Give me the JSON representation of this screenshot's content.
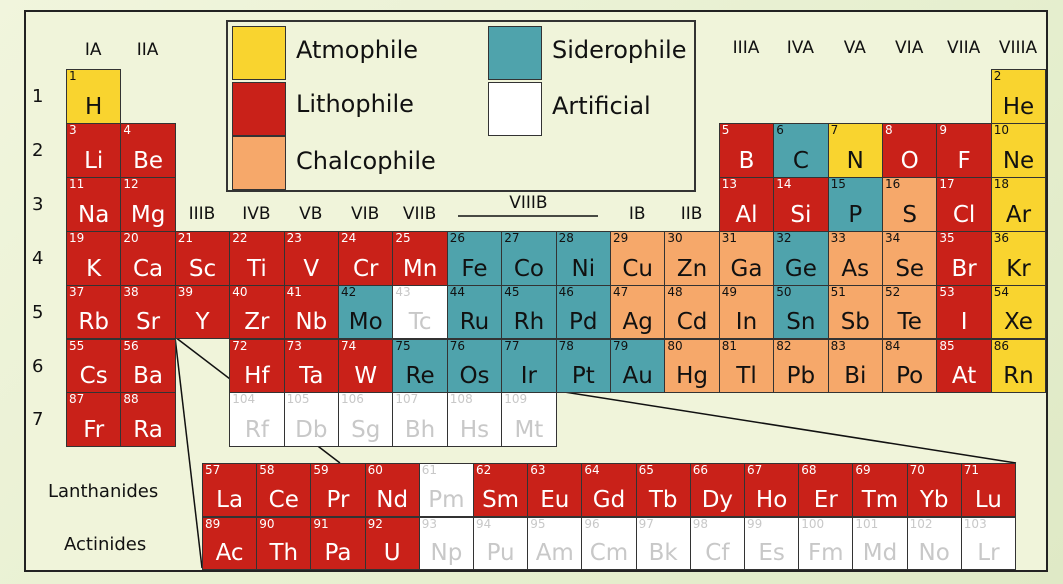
{
  "group_labels": [
    "IA",
    "IIA",
    "IIIB",
    "IVB",
    "VB",
    "VIB",
    "VIIB",
    "VIIIB",
    "IB",
    "IIB",
    "IIIA",
    "IVA",
    "VA",
    "VIA",
    "VIIA",
    "VIIIA"
  ],
  "period_labels": [
    "1",
    "2",
    "3",
    "4",
    "5",
    "6",
    "7"
  ],
  "series_labels": {
    "lanthanides": "Lanthanides",
    "actinides": "Actinides"
  },
  "legend": [
    {
      "label": "Atmophile",
      "class": "atmophile",
      "color": "#f9d42f"
    },
    {
      "label": "Lithophile",
      "class": "lithophile",
      "color": "#c92119"
    },
    {
      "label": "Chalcophile",
      "class": "chalcophile",
      "color": "#f6a86a"
    },
    {
      "label": "Siderophile",
      "class": "siderophile",
      "color": "#4fa3ac"
    },
    {
      "label": "Artificial",
      "class": "artificial",
      "color": "#ffffff"
    }
  ],
  "elements": [
    {
      "n": "1",
      "s": "H",
      "c": "atmophile",
      "p": 1,
      "g": 1
    },
    {
      "n": "2",
      "s": "He",
      "c": "atmophile",
      "p": 1,
      "g": 18
    },
    {
      "n": "3",
      "s": "Li",
      "c": "lithophile",
      "p": 2,
      "g": 1
    },
    {
      "n": "4",
      "s": "Be",
      "c": "lithophile",
      "p": 2,
      "g": 2
    },
    {
      "n": "5",
      "s": "B",
      "c": "lithophile",
      "p": 2,
      "g": 13
    },
    {
      "n": "6",
      "s": "C",
      "c": "siderophile",
      "p": 2,
      "g": 14
    },
    {
      "n": "7",
      "s": "N",
      "c": "atmophile",
      "p": 2,
      "g": 15
    },
    {
      "n": "8",
      "s": "O",
      "c": "lithophile",
      "p": 2,
      "g": 16
    },
    {
      "n": "9",
      "s": "F",
      "c": "lithophile",
      "p": 2,
      "g": 17
    },
    {
      "n": "10",
      "s": "Ne",
      "c": "atmophile",
      "p": 2,
      "g": 18
    },
    {
      "n": "11",
      "s": "Na",
      "c": "lithophile",
      "p": 3,
      "g": 1
    },
    {
      "n": "12",
      "s": "Mg",
      "c": "lithophile",
      "p": 3,
      "g": 2
    },
    {
      "n": "13",
      "s": "Al",
      "c": "lithophile",
      "p": 3,
      "g": 13
    },
    {
      "n": "14",
      "s": "Si",
      "c": "lithophile",
      "p": 3,
      "g": 14
    },
    {
      "n": "15",
      "s": "P",
      "c": "siderophile",
      "p": 3,
      "g": 15
    },
    {
      "n": "16",
      "s": "S",
      "c": "chalcophile",
      "p": 3,
      "g": 16
    },
    {
      "n": "17",
      "s": "Cl",
      "c": "lithophile",
      "p": 3,
      "g": 17
    },
    {
      "n": "18",
      "s": "Ar",
      "c": "atmophile",
      "p": 3,
      "g": 18
    },
    {
      "n": "19",
      "s": "K",
      "c": "lithophile",
      "p": 4,
      "g": 1
    },
    {
      "n": "20",
      "s": "Ca",
      "c": "lithophile",
      "p": 4,
      "g": 2
    },
    {
      "n": "21",
      "s": "Sc",
      "c": "lithophile",
      "p": 4,
      "g": 3
    },
    {
      "n": "22",
      "s": "Ti",
      "c": "lithophile",
      "p": 4,
      "g": 4
    },
    {
      "n": "23",
      "s": "V",
      "c": "lithophile",
      "p": 4,
      "g": 5
    },
    {
      "n": "24",
      "s": "Cr",
      "c": "lithophile",
      "p": 4,
      "g": 6
    },
    {
      "n": "25",
      "s": "Mn",
      "c": "lithophile",
      "p": 4,
      "g": 7
    },
    {
      "n": "26",
      "s": "Fe",
      "c": "siderophile",
      "p": 4,
      "g": 8
    },
    {
      "n": "27",
      "s": "Co",
      "c": "siderophile",
      "p": 4,
      "g": 9
    },
    {
      "n": "28",
      "s": "Ni",
      "c": "siderophile",
      "p": 4,
      "g": 10
    },
    {
      "n": "29",
      "s": "Cu",
      "c": "chalcophile",
      "p": 4,
      "g": 11
    },
    {
      "n": "30",
      "s": "Zn",
      "c": "chalcophile",
      "p": 4,
      "g": 12
    },
    {
      "n": "31",
      "s": "Ga",
      "c": "chalcophile",
      "p": 4,
      "g": 13
    },
    {
      "n": "32",
      "s": "Ge",
      "c": "siderophile",
      "p": 4,
      "g": 14
    },
    {
      "n": "33",
      "s": "As",
      "c": "chalcophile",
      "p": 4,
      "g": 15
    },
    {
      "n": "34",
      "s": "Se",
      "c": "chalcophile",
      "p": 4,
      "g": 16
    },
    {
      "n": "35",
      "s": "Br",
      "c": "lithophile",
      "p": 4,
      "g": 17
    },
    {
      "n": "36",
      "s": "Kr",
      "c": "atmophile",
      "p": 4,
      "g": 18
    },
    {
      "n": "37",
      "s": "Rb",
      "c": "lithophile",
      "p": 5,
      "g": 1
    },
    {
      "n": "38",
      "s": "Sr",
      "c": "lithophile",
      "p": 5,
      "g": 2
    },
    {
      "n": "39",
      "s": "Y",
      "c": "lithophile",
      "p": 5,
      "g": 3
    },
    {
      "n": "40",
      "s": "Zr",
      "c": "lithophile",
      "p": 5,
      "g": 4
    },
    {
      "n": "41",
      "s": "Nb",
      "c": "lithophile",
      "p": 5,
      "g": 5
    },
    {
      "n": "42",
      "s": "Mo",
      "c": "siderophile",
      "p": 5,
      "g": 6
    },
    {
      "n": "43",
      "s": "Tc",
      "c": "artificial",
      "p": 5,
      "g": 7
    },
    {
      "n": "44",
      "s": "Ru",
      "c": "siderophile",
      "p": 5,
      "g": 8
    },
    {
      "n": "45",
      "s": "Rh",
      "c": "siderophile",
      "p": 5,
      "g": 9
    },
    {
      "n": "46",
      "s": "Pd",
      "c": "siderophile",
      "p": 5,
      "g": 10
    },
    {
      "n": "47",
      "s": "Ag",
      "c": "chalcophile",
      "p": 5,
      "g": 11
    },
    {
      "n": "48",
      "s": "Cd",
      "c": "chalcophile",
      "p": 5,
      "g": 12
    },
    {
      "n": "49",
      "s": "In",
      "c": "chalcophile",
      "p": 5,
      "g": 13
    },
    {
      "n": "50",
      "s": "Sn",
      "c": "siderophile",
      "p": 5,
      "g": 14
    },
    {
      "n": "51",
      "s": "Sb",
      "c": "chalcophile",
      "p": 5,
      "g": 15
    },
    {
      "n": "52",
      "s": "Te",
      "c": "chalcophile",
      "p": 5,
      "g": 16
    },
    {
      "n": "53",
      "s": "I",
      "c": "lithophile",
      "p": 5,
      "g": 17
    },
    {
      "n": "54",
      "s": "Xe",
      "c": "atmophile",
      "p": 5,
      "g": 18
    },
    {
      "n": "55",
      "s": "Cs",
      "c": "lithophile",
      "p": 6,
      "g": 1
    },
    {
      "n": "56",
      "s": "Ba",
      "c": "lithophile",
      "p": 6,
      "g": 2
    },
    {
      "n": "72",
      "s": "Hf",
      "c": "lithophile",
      "p": 6,
      "g": 4
    },
    {
      "n": "73",
      "s": "Ta",
      "c": "lithophile",
      "p": 6,
      "g": 5
    },
    {
      "n": "74",
      "s": "W",
      "c": "lithophile",
      "p": 6,
      "g": 6
    },
    {
      "n": "75",
      "s": "Re",
      "c": "siderophile",
      "p": 6,
      "g": 7
    },
    {
      "n": "76",
      "s": "Os",
      "c": "siderophile",
      "p": 6,
      "g": 8
    },
    {
      "n": "77",
      "s": "Ir",
      "c": "siderophile",
      "p": 6,
      "g": 9
    },
    {
      "n": "78",
      "s": "Pt",
      "c": "siderophile",
      "p": 6,
      "g": 10
    },
    {
      "n": "79",
      "s": "Au",
      "c": "siderophile",
      "p": 6,
      "g": 11
    },
    {
      "n": "80",
      "s": "Hg",
      "c": "chalcophile",
      "p": 6,
      "g": 12
    },
    {
      "n": "81",
      "s": "Tl",
      "c": "chalcophile",
      "p": 6,
      "g": 13
    },
    {
      "n": "82",
      "s": "Pb",
      "c": "chalcophile",
      "p": 6,
      "g": 14
    },
    {
      "n": "83",
      "s": "Bi",
      "c": "chalcophile",
      "p": 6,
      "g": 15
    },
    {
      "n": "84",
      "s": "Po",
      "c": "chalcophile",
      "p": 6,
      "g": 16
    },
    {
      "n": "85",
      "s": "At",
      "c": "lithophile",
      "p": 6,
      "g": 17
    },
    {
      "n": "86",
      "s": "Rn",
      "c": "atmophile",
      "p": 6,
      "g": 18
    },
    {
      "n": "87",
      "s": "Fr",
      "c": "lithophile",
      "p": 7,
      "g": 1
    },
    {
      "n": "88",
      "s": "Ra",
      "c": "lithophile",
      "p": 7,
      "g": 2
    },
    {
      "n": "104",
      "s": "Rf",
      "c": "artificial",
      "p": 7,
      "g": 4
    },
    {
      "n": "105",
      "s": "Db",
      "c": "artificial",
      "p": 7,
      "g": 5
    },
    {
      "n": "106",
      "s": "Sg",
      "c": "artificial",
      "p": 7,
      "g": 6
    },
    {
      "n": "107",
      "s": "Bh",
      "c": "artificial",
      "p": 7,
      "g": 7
    },
    {
      "n": "108",
      "s": "Hs",
      "c": "artificial",
      "p": 7,
      "g": 8
    },
    {
      "n": "109",
      "s": "Mt",
      "c": "artificial",
      "p": 7,
      "g": 9
    }
  ],
  "lanthanides": [
    {
      "n": "57",
      "s": "La",
      "c": "lithophile"
    },
    {
      "n": "58",
      "s": "Ce",
      "c": "lithophile"
    },
    {
      "n": "59",
      "s": "Pr",
      "c": "lithophile"
    },
    {
      "n": "60",
      "s": "Nd",
      "c": "lithophile"
    },
    {
      "n": "61",
      "s": "Pm",
      "c": "artificial"
    },
    {
      "n": "62",
      "s": "Sm",
      "c": "lithophile"
    },
    {
      "n": "63",
      "s": "Eu",
      "c": "lithophile"
    },
    {
      "n": "64",
      "s": "Gd",
      "c": "lithophile"
    },
    {
      "n": "65",
      "s": "Tb",
      "c": "lithophile"
    },
    {
      "n": "66",
      "s": "Dy",
      "c": "lithophile"
    },
    {
      "n": "67",
      "s": "Ho",
      "c": "lithophile"
    },
    {
      "n": "68",
      "s": "Er",
      "c": "lithophile"
    },
    {
      "n": "69",
      "s": "Tm",
      "c": "lithophile"
    },
    {
      "n": "70",
      "s": "Yb",
      "c": "lithophile"
    },
    {
      "n": "71",
      "s": "Lu",
      "c": "lithophile"
    }
  ],
  "actinides": [
    {
      "n": "89",
      "s": "Ac",
      "c": "lithophile"
    },
    {
      "n": "90",
      "s": "Th",
      "c": "lithophile"
    },
    {
      "n": "91",
      "s": "Pa",
      "c": "lithophile"
    },
    {
      "n": "92",
      "s": "U",
      "c": "lithophile"
    },
    {
      "n": "93",
      "s": "Np",
      "c": "artificial"
    },
    {
      "n": "94",
      "s": "Pu",
      "c": "artificial"
    },
    {
      "n": "95",
      "s": "Am",
      "c": "artificial"
    },
    {
      "n": "96",
      "s": "Cm",
      "c": "artificial"
    },
    {
      "n": "97",
      "s": "Bk",
      "c": "artificial"
    },
    {
      "n": "98",
      "s": "Cf",
      "c": "artificial"
    },
    {
      "n": "99",
      "s": "Es",
      "c": "artificial"
    },
    {
      "n": "100",
      "s": "Fm",
      "c": "artificial"
    },
    {
      "n": "101",
      "s": "Md",
      "c": "artificial"
    },
    {
      "n": "102",
      "s": "No",
      "c": "artificial"
    },
    {
      "n": "103",
      "s": "Lr",
      "c": "artificial"
    }
  ]
}
